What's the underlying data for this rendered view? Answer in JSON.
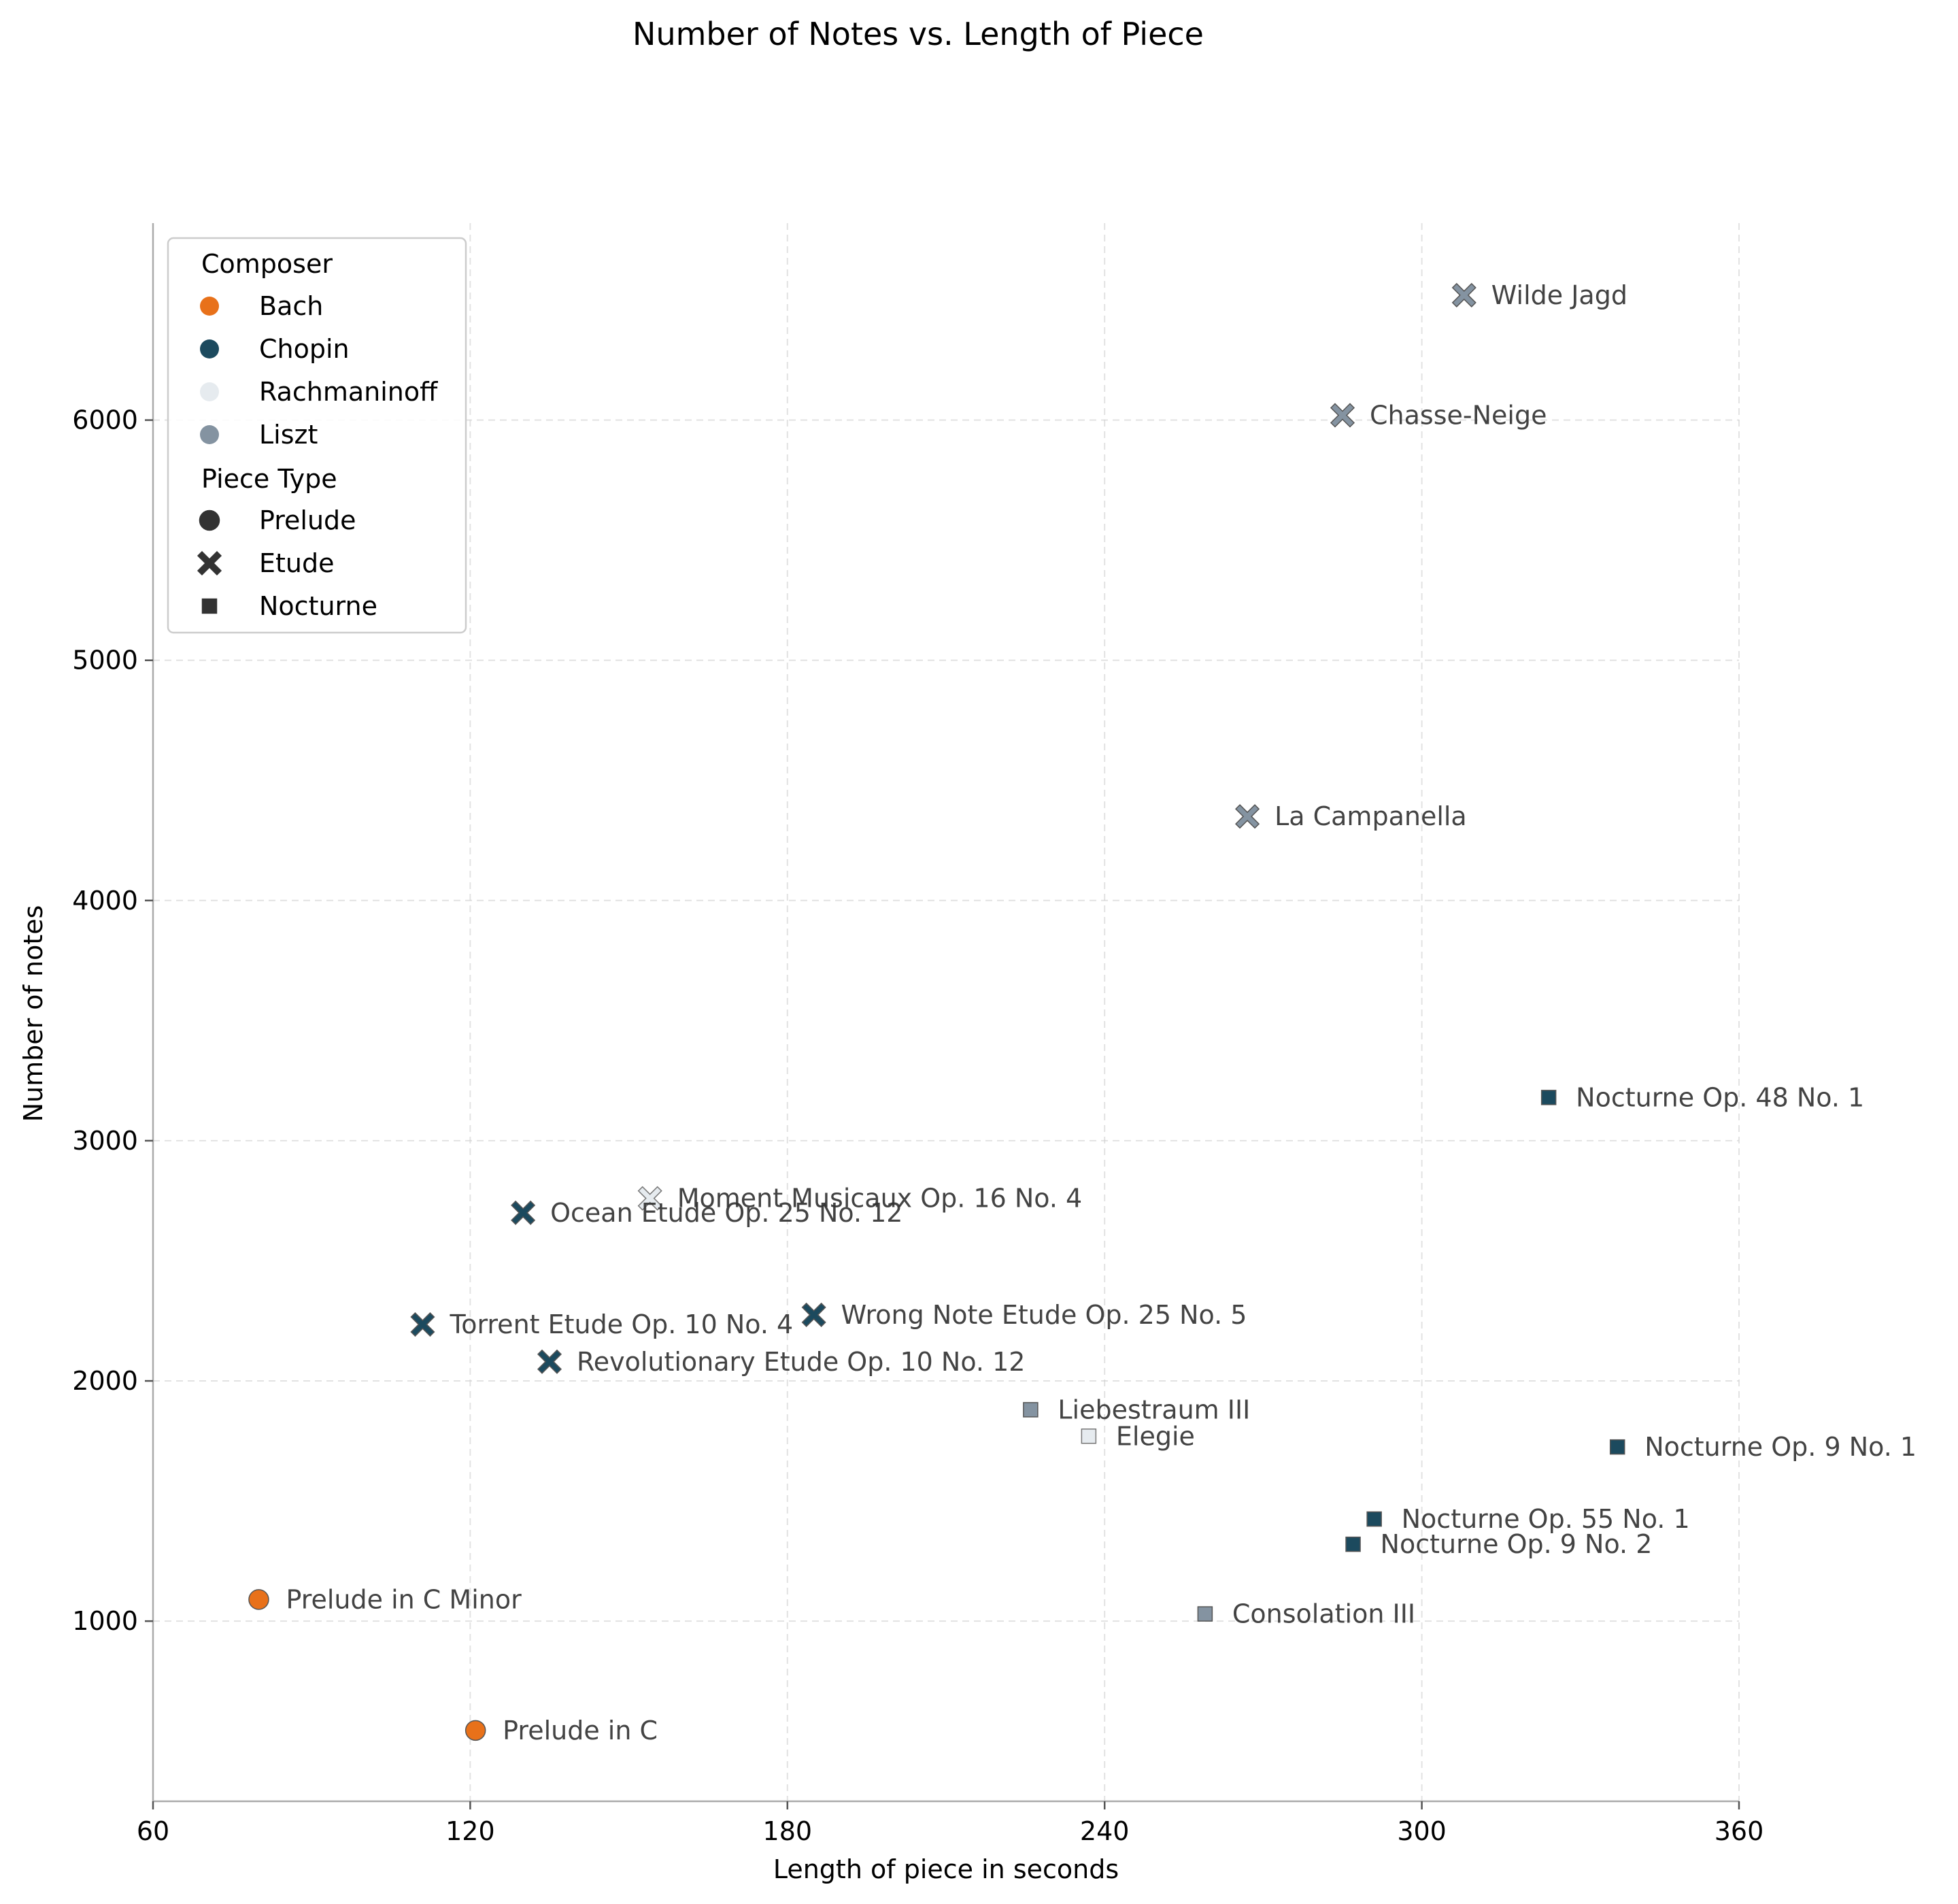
{
  "chart_data": {
    "type": "scatter",
    "title": "Number of Notes vs. Length of Piece",
    "xlabel": "Length of piece in seconds",
    "ylabel": "Number of notes",
    "xlim": [
      60,
      360
    ],
    "ylim": [
      250,
      6820
    ],
    "xticks": [
      60,
      120,
      180,
      240,
      300,
      360
    ],
    "yticks": [
      1000,
      2000,
      3000,
      4000,
      5000,
      6000
    ],
    "grid": true,
    "legend_position": "upper-left",
    "legend": {
      "hue_title": "Composer",
      "hue_entries": [
        {
          "name": "Bach",
          "color": "#E8711A"
        },
        {
          "name": "Chopin",
          "color": "#1C4A5E"
        },
        {
          "name": "Rachmaninoff",
          "color": "#E6EBEF"
        },
        {
          "name": "Liszt",
          "color": "#8493A1"
        }
      ],
      "style_title": "Piece Type",
      "style_entries": [
        {
          "name": "Prelude",
          "marker": "circle"
        },
        {
          "name": "Etude",
          "marker": "x"
        },
        {
          "name": "Nocturne",
          "marker": "square"
        }
      ]
    },
    "points": [
      {
        "label": "Prelude in C Minor",
        "composer": "Bach",
        "type": "Prelude",
        "x": 80,
        "y": 1090
      },
      {
        "label": "Prelude in C",
        "composer": "Bach",
        "type": "Prelude",
        "x": 121,
        "y": 545
      },
      {
        "label": "Torrent Etude Op. 10 No. 4",
        "composer": "Chopin",
        "type": "Etude",
        "x": 111,
        "y": 2235
      },
      {
        "label": "Ocean Etude Op. 25 No. 12",
        "composer": "Chopin",
        "type": "Etude",
        "x": 130,
        "y": 2700
      },
      {
        "label": "Revolutionary Etude Op. 10 No. 12",
        "composer": "Chopin",
        "type": "Etude",
        "x": 135,
        "y": 2080
      },
      {
        "label": "Wrong Note Etude Op. 25 No. 5",
        "composer": "Chopin",
        "type": "Etude",
        "x": 185,
        "y": 2275
      },
      {
        "label": "Moment Musicaux Op. 16 No. 4",
        "composer": "Rachmaninoff",
        "type": "Etude",
        "x": 154,
        "y": 2760
      },
      {
        "label": "Liebestraum III",
        "composer": "Liszt",
        "type": "Nocturne",
        "x": 226,
        "y": 1880
      },
      {
        "label": "Elegie",
        "composer": "Rachmaninoff",
        "type": "Nocturne",
        "x": 237,
        "y": 1770
      },
      {
        "label": "Consolation III",
        "composer": "Liszt",
        "type": "Nocturne",
        "x": 259,
        "y": 1030
      },
      {
        "label": "La Campanella",
        "composer": "Liszt",
        "type": "Etude",
        "x": 267,
        "y": 4350
      },
      {
        "label": "Chasse-Neige",
        "composer": "Liszt",
        "type": "Etude",
        "x": 285,
        "y": 6020
      },
      {
        "label": "Wilde Jagd",
        "composer": "Liszt",
        "type": "Etude",
        "x": 308,
        "y": 6520
      },
      {
        "label": "Nocturne Op. 9 No. 2",
        "composer": "Chopin",
        "type": "Nocturne",
        "x": 287,
        "y": 1320
      },
      {
        "label": "Nocturne Op. 55 No. 1",
        "composer": "Chopin",
        "type": "Nocturne",
        "x": 291,
        "y": 1425
      },
      {
        "label": "Nocturne Op. 48 No. 1",
        "composer": "Chopin",
        "type": "Nocturne",
        "x": 324,
        "y": 3180
      },
      {
        "label": "Nocturne Op. 9 No. 1",
        "composer": "Chopin",
        "type": "Nocturne",
        "x": 337,
        "y": 1725
      }
    ]
  }
}
